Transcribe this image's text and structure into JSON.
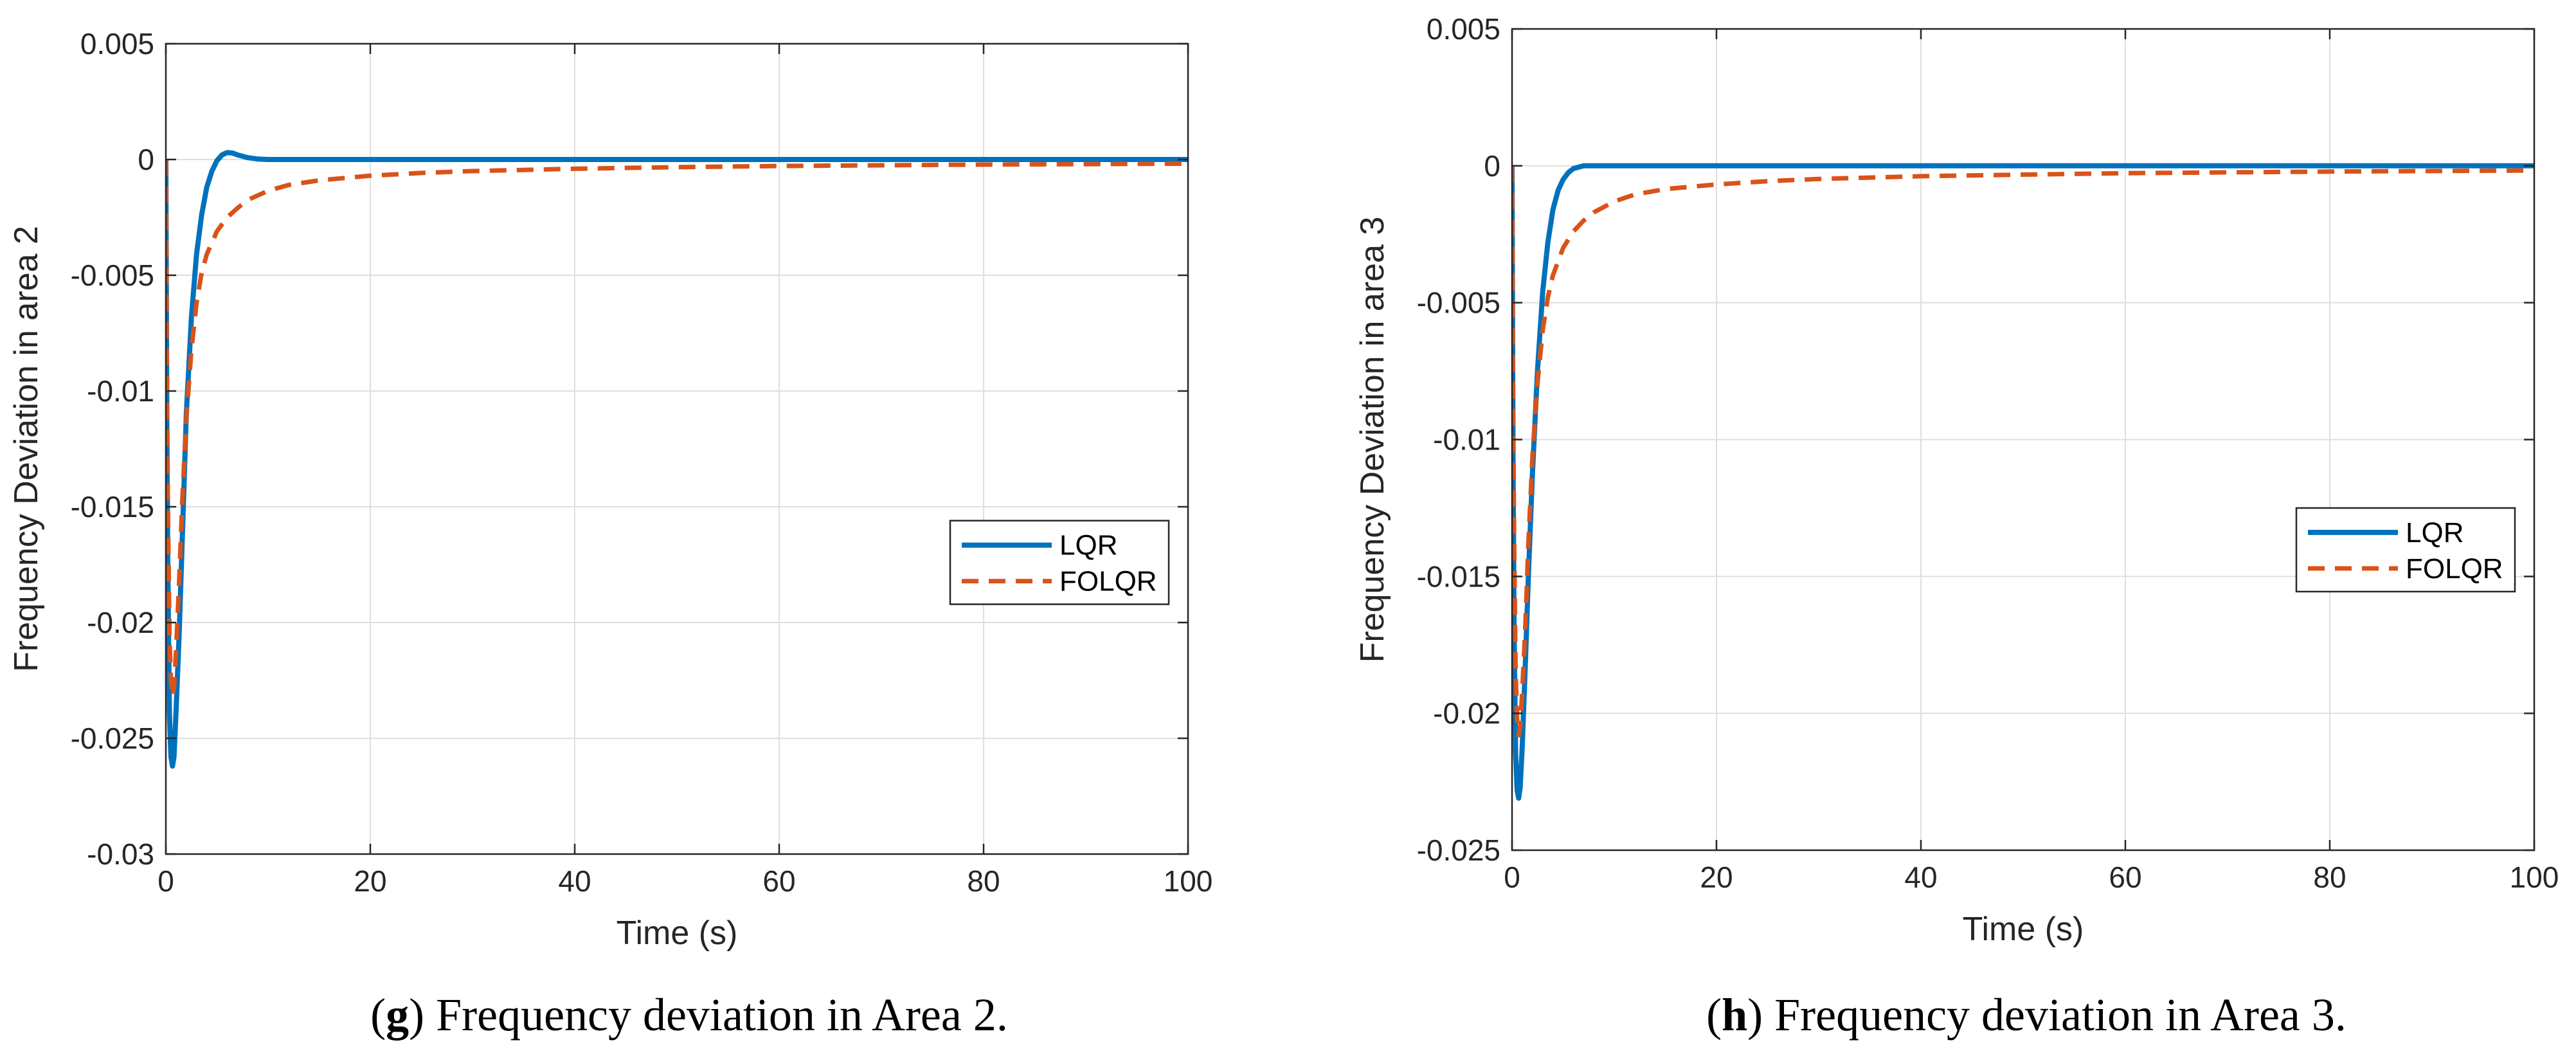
{
  "chart_data": [
    {
      "type": "line",
      "panel": "g",
      "caption": "Frequency deviation in Area 2.",
      "title": "",
      "xlabel": "Time (s)",
      "ylabel": "Frequency Deviation in area 2",
      "xlim": [
        0,
        100
      ],
      "ylim": [
        -0.03,
        0.005
      ],
      "xticks": [
        0,
        20,
        40,
        60,
        80,
        100
      ],
      "xtick_labels": [
        "0",
        "20",
        "40",
        "60",
        "80",
        "100"
      ],
      "yticks": [
        0.005,
        0,
        -0.005,
        -0.01,
        -0.015,
        -0.02,
        -0.025,
        -0.03
      ],
      "ytick_labels": [
        "0.005",
        "0",
        "-0.005",
        "-0.01",
        "-0.015",
        "-0.02",
        "-0.025",
        "-0.03"
      ],
      "grid": true,
      "legend_position": "right-middle",
      "series": [
        {
          "name": "LQR",
          "color": "#0072BD",
          "style": "solid",
          "x": [
            0,
            0.1,
            0.2,
            0.35,
            0.5,
            0.65,
            0.8,
            1.0,
            1.3,
            1.6,
            2.0,
            2.5,
            3.0,
            3.5,
            4.0,
            4.5,
            5.0,
            5.5,
            6.0,
            6.5,
            7.0,
            8.0,
            9.0,
            10.0,
            12.0,
            15.0,
            20.0,
            30.0,
            50.0,
            100.0
          ],
          "y": [
            0,
            -0.012,
            -0.018,
            -0.024,
            -0.0258,
            -0.0262,
            -0.0258,
            -0.0238,
            -0.0205,
            -0.0165,
            -0.011,
            -0.0068,
            -0.0041,
            -0.0024,
            -0.0012,
            -0.0005,
            -5e-05,
            0.0002,
            0.0003,
            0.00028,
            0.0002,
            8e-05,
            2e-05,
            0,
            0,
            0,
            0,
            0,
            0,
            0
          ]
        },
        {
          "name": "FOLQR",
          "color": "#D95319",
          "style": "dashed",
          "x": [
            0,
            0.1,
            0.2,
            0.35,
            0.5,
            0.65,
            0.8,
            1.0,
            1.3,
            1.6,
            2.0,
            2.5,
            3.0,
            3.5,
            4.0,
            5.0,
            6.0,
            7.0,
            8.0,
            10.0,
            12.0,
            15.0,
            20.0,
            25.0,
            30.0,
            40.0,
            50.0,
            60.0,
            70.0,
            80.0,
            90.0,
            100.0
          ],
          "y": [
            0,
            -0.009,
            -0.015,
            -0.0205,
            -0.0225,
            -0.0232,
            -0.0228,
            -0.0212,
            -0.0182,
            -0.0148,
            -0.0112,
            -0.0082,
            -0.0062,
            -0.0049,
            -0.0041,
            -0.0031,
            -0.0025,
            -0.0021,
            -0.00175,
            -0.00135,
            -0.0011,
            -0.0009,
            -0.0007,
            -0.00058,
            -0.0005,
            -0.0004,
            -0.00033,
            -0.00028,
            -0.00025,
            -0.00022,
            -0.0002,
            -0.00018
          ]
        }
      ]
    },
    {
      "type": "line",
      "panel": "h",
      "caption": "Frequency deviation in Area 3.",
      "title": "",
      "xlabel": "Time (s)",
      "ylabel": "Frequency Deviation in area 3",
      "xlim": [
        0,
        100
      ],
      "ylim": [
        -0.025,
        0.005
      ],
      "xticks": [
        0,
        20,
        40,
        60,
        80,
        100
      ],
      "xtick_labels": [
        "0",
        "20",
        "40",
        "60",
        "80",
        "100"
      ],
      "yticks": [
        0.005,
        0,
        -0.005,
        -0.01,
        -0.015,
        -0.02,
        -0.025
      ],
      "ytick_labels": [
        "0.005",
        "0",
        "-0.005",
        "-0.01",
        "-0.015",
        "-0.02",
        "-0.025"
      ],
      "grid": true,
      "legend_position": "right-middle",
      "series": [
        {
          "name": "LQR",
          "color": "#0072BD",
          "style": "solid",
          "x": [
            0,
            0.1,
            0.2,
            0.35,
            0.5,
            0.65,
            0.8,
            1.0,
            1.3,
            1.6,
            2.0,
            2.5,
            3.0,
            3.5,
            4.0,
            4.5,
            5.0,
            5.5,
            6.0,
            7.0,
            8.0,
            10.0,
            15.0,
            20.0,
            50.0,
            100.0
          ],
          "y": [
            0,
            -0.011,
            -0.017,
            -0.0215,
            -0.0228,
            -0.0231,
            -0.0227,
            -0.0212,
            -0.0182,
            -0.015,
            -0.0112,
            -0.0074,
            -0.0046,
            -0.0028,
            -0.0016,
            -0.0009,
            -0.0005,
            -0.00025,
            -0.0001,
            0,
            0,
            0,
            0,
            0,
            0,
            0
          ]
        },
        {
          "name": "FOLQR",
          "color": "#D95319",
          "style": "dashed",
          "x": [
            0,
            0.1,
            0.2,
            0.35,
            0.5,
            0.65,
            0.8,
            1.0,
            1.3,
            1.6,
            2.0,
            2.5,
            3.0,
            3.5,
            4.0,
            5.0,
            6.0,
            7.0,
            8.0,
            10.0,
            12.0,
            15.0,
            20.0,
            25.0,
            30.0,
            40.0,
            50.0,
            60.0,
            70.0,
            80.0,
            90.0,
            100.0
          ],
          "y": [
            0,
            -0.008,
            -0.0135,
            -0.0185,
            -0.0202,
            -0.0208,
            -0.0205,
            -0.0192,
            -0.0168,
            -0.0138,
            -0.0106,
            -0.0079,
            -0.006,
            -0.0048,
            -0.004,
            -0.003,
            -0.0024,
            -0.002,
            -0.0017,
            -0.0013,
            -0.00105,
            -0.00085,
            -0.00068,
            -0.00056,
            -0.00048,
            -0.00038,
            -0.00032,
            -0.00027,
            -0.00024,
            -0.00021,
            -0.00019,
            -0.00017
          ]
        }
      ]
    }
  ]
}
